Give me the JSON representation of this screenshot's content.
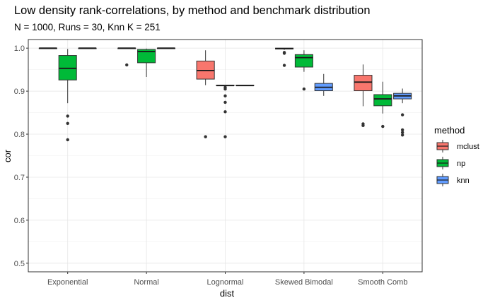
{
  "chart_data": {
    "type": "boxplot",
    "title": "Low density rank-correlations, by method and benchmark distribution",
    "subtitle": "N = 1000, Runs  = 30, Knn K = 251",
    "xlabel": "dist",
    "ylabel": "cor",
    "ylim": [
      0.48,
      1.02
    ],
    "yticks": [
      "0.5",
      "0.6",
      "0.7",
      "0.8",
      "0.9",
      "1.0"
    ],
    "grid": true,
    "legend_position": "right",
    "legend_title": "method",
    "categories": [
      "Exponential",
      "Normal",
      "Lognormal",
      "Skewed Bimodal",
      "Smooth Comb"
    ],
    "series": [
      {
        "name": "mclust",
        "color": "#F8766D",
        "boxes": [
          {
            "min": 0.999,
            "q1": 0.999,
            "median": 1.0,
            "q3": 1.0,
            "max": 1.0,
            "outliers": []
          },
          {
            "min": 0.999,
            "q1": 0.999,
            "median": 1.0,
            "q3": 1.0,
            "max": 1.0,
            "outliers": [
              0.961
            ]
          },
          {
            "min": 0.914,
            "q1": 0.928,
            "median": 0.948,
            "q3": 0.97,
            "max": 0.995,
            "outliers": [
              0.794
            ]
          },
          {
            "min": 0.996,
            "q1": 0.998,
            "median": 0.999,
            "q3": 1.0,
            "max": 1.0,
            "outliers": [
              0.99,
              0.988,
              0.96
            ]
          },
          {
            "min": 0.865,
            "q1": 0.901,
            "median": 0.921,
            "q3": 0.937,
            "max": 0.962,
            "outliers": [
              0.824,
              0.82
            ]
          }
        ]
      },
      {
        "name": "np",
        "color": "#00BA38",
        "boxes": [
          {
            "min": 0.872,
            "q1": 0.926,
            "median": 0.953,
            "q3": 0.983,
            "max": 0.998,
            "outliers": [
              0.842,
              0.825,
              0.787
            ]
          },
          {
            "min": 0.933,
            "q1": 0.966,
            "median": 0.992,
            "q3": 0.997,
            "max": 0.999,
            "outliers": []
          },
          {
            "min": 0.912,
            "q1": 0.913,
            "median": 0.913,
            "q3": 0.914,
            "max": 0.914,
            "outliers": [
              0.909,
              0.905,
              0.889,
              0.874,
              0.852,
              0.794
            ]
          },
          {
            "min": 0.945,
            "q1": 0.956,
            "median": 0.978,
            "q3": 0.985,
            "max": 0.995,
            "outliers": [
              0.905
            ]
          },
          {
            "min": 0.848,
            "q1": 0.866,
            "median": 0.882,
            "q3": 0.892,
            "max": 0.922,
            "outliers": [
              0.818
            ]
          }
        ]
      },
      {
        "name": "knn",
        "color": "#619CFF",
        "boxes": [
          {
            "min": 0.999,
            "q1": 0.999,
            "median": 1.0,
            "q3": 1.0,
            "max": 1.0,
            "outliers": []
          },
          {
            "min": 1.0,
            "q1": 1.0,
            "median": 1.0,
            "q3": 1.0,
            "max": 1.0,
            "outliers": []
          },
          {
            "min": 0.913,
            "q1": 0.913,
            "median": 0.913,
            "q3": 0.914,
            "max": 0.914,
            "outliers": []
          },
          {
            "min": 0.889,
            "q1": 0.901,
            "median": 0.909,
            "q3": 0.918,
            "max": 0.94,
            "outliers": []
          },
          {
            "min": 0.872,
            "q1": 0.882,
            "median": 0.889,
            "q3": 0.895,
            "max": 0.906,
            "outliers": [
              0.845,
              0.81,
              0.804,
              0.798
            ]
          }
        ]
      }
    ]
  }
}
